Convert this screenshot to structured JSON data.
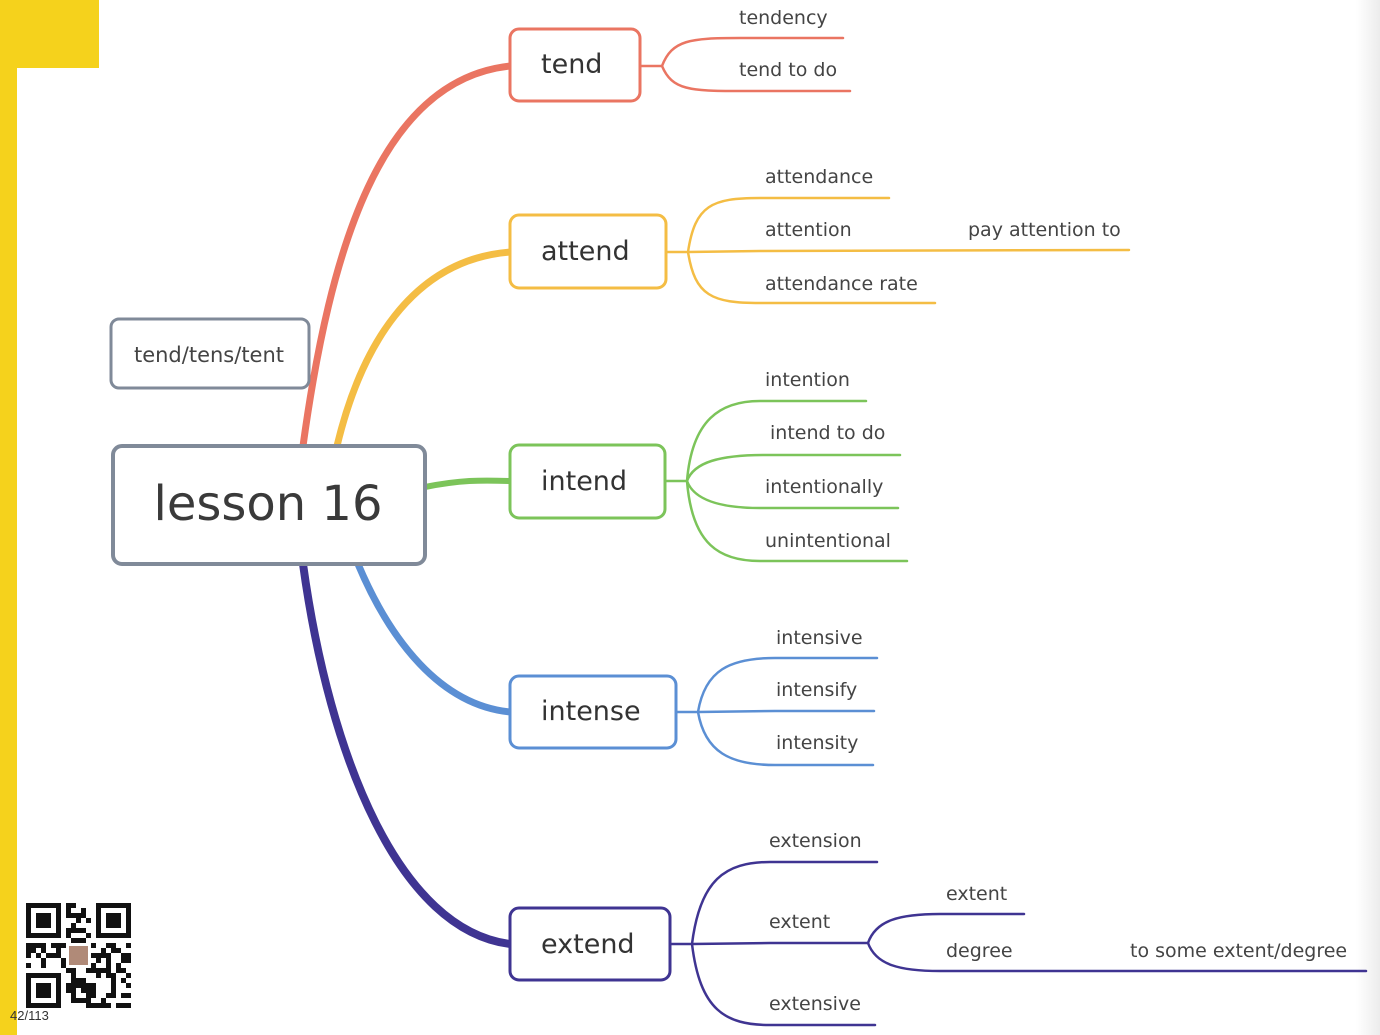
{
  "root": {
    "label": "lesson 16",
    "color": "#808a99"
  },
  "side_note": {
    "label": "tend/tens/tent",
    "color": "#808a99"
  },
  "branches": [
    {
      "label": "tend",
      "color": "#ea7562",
      "words": [
        "tendency",
        "tend to do"
      ]
    },
    {
      "label": "attend",
      "color": "#f4bd44",
      "words": [
        "attendance",
        "attention",
        "attendance rate"
      ],
      "sub": {
        "parent": "attention",
        "words": [
          "pay attention to"
        ]
      }
    },
    {
      "label": "intend",
      "color": "#7cc45a",
      "words": [
        "intention",
        "intend to do",
        "intentionally",
        "unintentional"
      ]
    },
    {
      "label": "intense",
      "color": "#5b8fd4",
      "words": [
        "intensive",
        "intensify",
        "intensity"
      ]
    },
    {
      "label": "extend",
      "color": "#3f3492",
      "words": [
        "extension",
        "extent",
        "extensive"
      ],
      "sub": {
        "parent": "extent",
        "words": [
          "extent",
          "degree"
        ]
      },
      "subsub": {
        "parent": "degree",
        "words": [
          "to some extent/degree"
        ]
      }
    }
  ],
  "page_counter": "42/113",
  "qr_code_icon": "qr-code-with-avatar",
  "frame_color": "#f5d21c"
}
